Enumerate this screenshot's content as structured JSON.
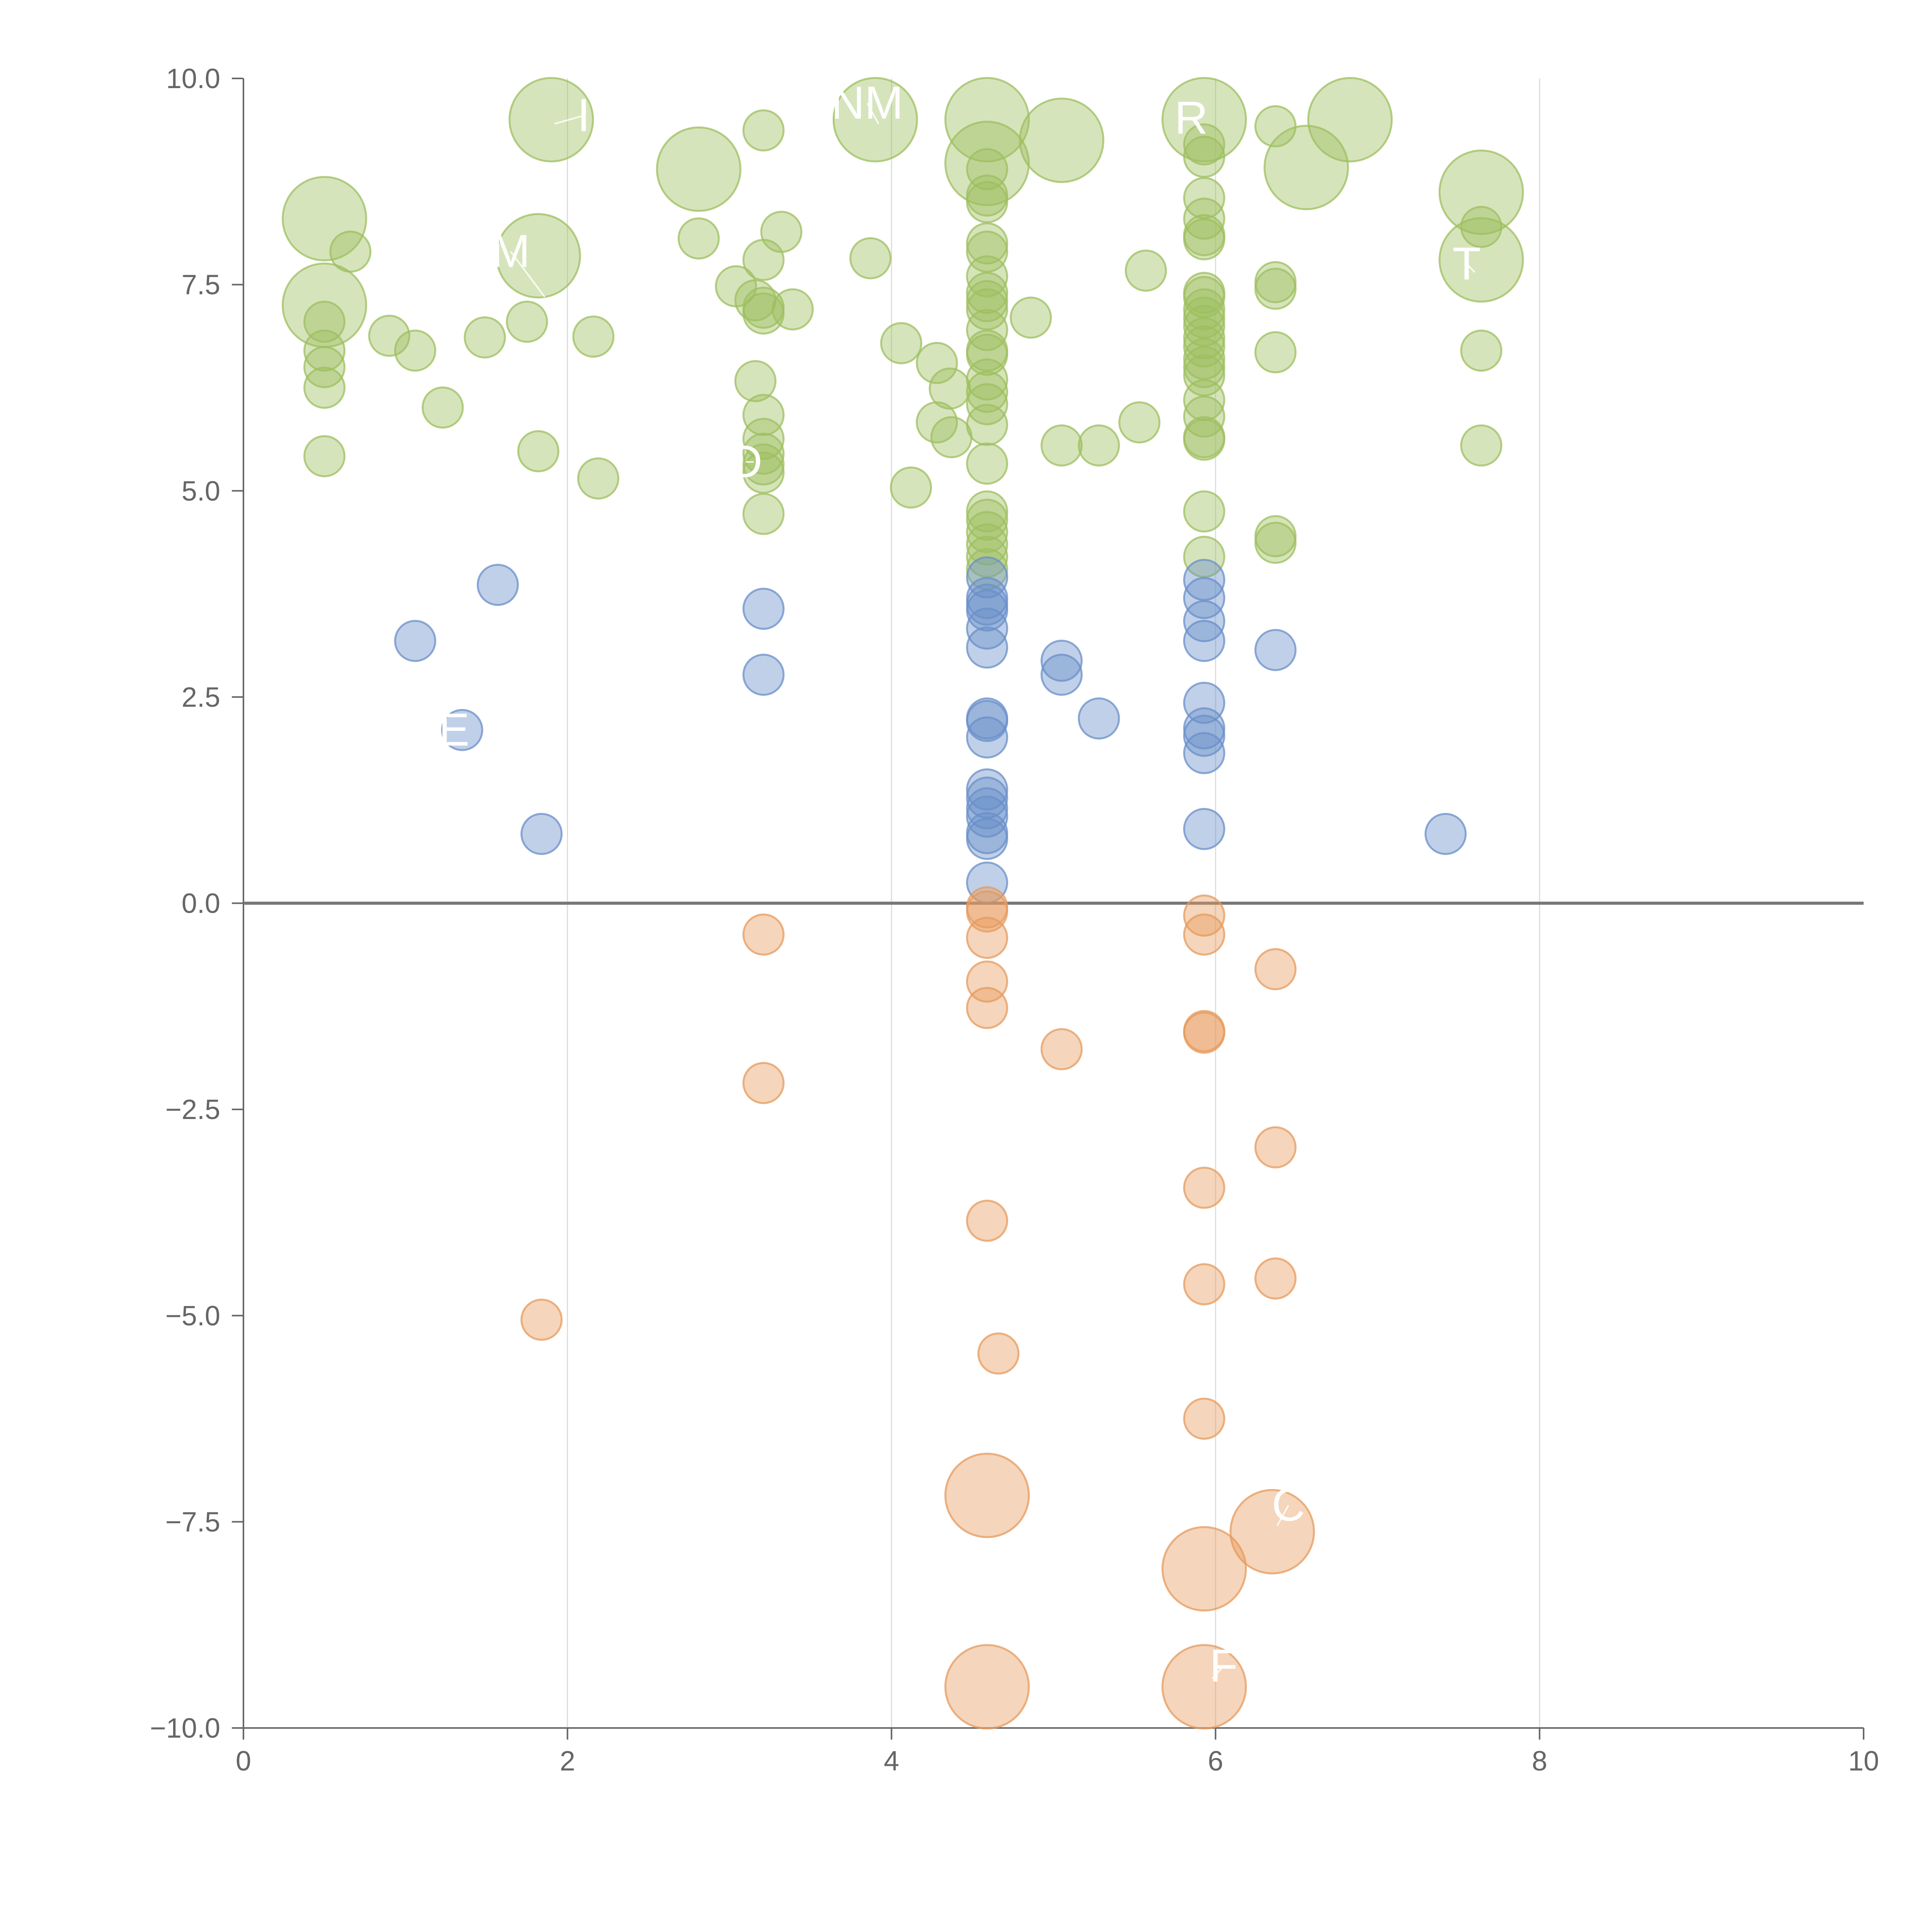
{
  "chart_data": {
    "type": "scatter",
    "title": "",
    "xlabel": "",
    "ylabel": "",
    "xlim": [
      0,
      10
    ],
    "ylim": [
      -10,
      10
    ],
    "x_ticks": [
      "0",
      "2",
      "4",
      "6",
      "8",
      "10"
    ],
    "y_ticks": [
      "−10.0",
      "−7.5",
      "−5.0",
      "−2.5",
      "0.0",
      "2.5",
      "5.0",
      "7.5",
      "10.0"
    ],
    "grid": "vertical",
    "zero_line": true,
    "colors": {
      "green": "#9ebf5f",
      "blue": "#6a8fc9",
      "orange": "#e69a5c",
      "axis": "#666666",
      "grid": "#dddddd",
      "zero_line": "#777777",
      "label": "#ffffff"
    },
    "series": [
      {
        "name": "green",
        "color": "#9ebf5f",
        "points": [
          {
            "x": 0.5,
            "y": 8.3,
            "size": "L"
          },
          {
            "x": 0.5,
            "y": 7.25,
            "size": "L"
          },
          {
            "x": 0.66,
            "y": 7.9,
            "size": "S"
          },
          {
            "x": 0.5,
            "y": 7.05,
            "size": "S"
          },
          {
            "x": 0.5,
            "y": 6.7,
            "size": "S"
          },
          {
            "x": 0.5,
            "y": 6.5,
            "size": "S"
          },
          {
            "x": 0.5,
            "y": 6.25,
            "size": "S"
          },
          {
            "x": 0.5,
            "y": 5.42,
            "size": "S"
          },
          {
            "x": 0.9,
            "y": 6.88,
            "size": "S"
          },
          {
            "x": 1.06,
            "y": 6.7,
            "size": "S"
          },
          {
            "x": 1.23,
            "y": 6.01,
            "size": "S"
          },
          {
            "x": 1.49,
            "y": 6.86,
            "size": "S"
          },
          {
            "x": 1.75,
            "y": 7.05,
            "size": "S"
          },
          {
            "x": 1.82,
            "y": 7.85,
            "size": "L"
          },
          {
            "x": 1.9,
            "y": 9.5,
            "size": "L"
          },
          {
            "x": 1.82,
            "y": 5.48,
            "size": "S"
          },
          {
            "x": 2.16,
            "y": 6.87,
            "size": "S"
          },
          {
            "x": 2.19,
            "y": 5.15,
            "size": "S"
          },
          {
            "x": 2.81,
            "y": 8.06,
            "size": "S"
          },
          {
            "x": 2.81,
            "y": 8.9,
            "size": "L"
          },
          {
            "x": 3.04,
            "y": 7.48,
            "size": "S"
          },
          {
            "x": 3.21,
            "y": 9.37,
            "size": "S"
          },
          {
            "x": 3.21,
            "y": 7.8,
            "size": "S"
          },
          {
            "x": 3.32,
            "y": 8.14,
            "size": "S"
          },
          {
            "x": 3.16,
            "y": 7.31,
            "size": "S"
          },
          {
            "x": 3.21,
            "y": 7.22,
            "size": "S"
          },
          {
            "x": 3.21,
            "y": 7.15,
            "size": "S"
          },
          {
            "x": 3.39,
            "y": 7.2,
            "size": "S"
          },
          {
            "x": 3.16,
            "y": 6.33,
            "size": "S"
          },
          {
            "x": 3.21,
            "y": 5.92,
            "size": "S"
          },
          {
            "x": 3.21,
            "y": 5.63,
            "size": "S"
          },
          {
            "x": 3.21,
            "y": 5.45,
            "size": "S"
          },
          {
            "x": 3.21,
            "y": 5.32,
            "size": "S"
          },
          {
            "x": 3.21,
            "y": 5.22,
            "size": "S"
          },
          {
            "x": 3.21,
            "y": 4.72,
            "size": "S"
          },
          {
            "x": 3.9,
            "y": 9.5,
            "size": "L"
          },
          {
            "x": 3.87,
            "y": 7.82,
            "size": "S"
          },
          {
            "x": 4.06,
            "y": 6.79,
            "size": "S"
          },
          {
            "x": 4.28,
            "y": 6.55,
            "size": "S"
          },
          {
            "x": 4.36,
            "y": 6.24,
            "size": "S"
          },
          {
            "x": 4.28,
            "y": 5.83,
            "size": "S"
          },
          {
            "x": 4.37,
            "y": 5.65,
            "size": "S"
          },
          {
            "x": 4.12,
            "y": 5.04,
            "size": "S"
          },
          {
            "x": 4.59,
            "y": 9.5,
            "size": "L"
          },
          {
            "x": 4.59,
            "y": 8.97,
            "size": "L"
          },
          {
            "x": 4.59,
            "y": 8.9,
            "size": "S"
          },
          {
            "x": 4.59,
            "y": 8.58,
            "size": "S"
          },
          {
            "x": 4.59,
            "y": 8.5,
            "size": "S"
          },
          {
            "x": 4.59,
            "y": 8.0,
            "size": "S"
          },
          {
            "x": 4.59,
            "y": 7.9,
            "size": "S"
          },
          {
            "x": 4.59,
            "y": 7.6,
            "size": "S"
          },
          {
            "x": 4.59,
            "y": 7.4,
            "size": "S"
          },
          {
            "x": 4.59,
            "y": 7.3,
            "size": "S"
          },
          {
            "x": 4.59,
            "y": 7.2,
            "size": "S"
          },
          {
            "x": 4.59,
            "y": 6.95,
            "size": "S"
          },
          {
            "x": 4.59,
            "y": 6.7,
            "size": "S"
          },
          {
            "x": 4.59,
            "y": 6.65,
            "size": "S"
          },
          {
            "x": 4.59,
            "y": 6.35,
            "size": "S"
          },
          {
            "x": 4.59,
            "y": 6.2,
            "size": "S"
          },
          {
            "x": 4.59,
            "y": 6.05,
            "size": "S"
          },
          {
            "x": 4.59,
            "y": 5.8,
            "size": "S"
          },
          {
            "x": 4.59,
            "y": 5.33,
            "size": "S"
          },
          {
            "x": 4.59,
            "y": 4.75,
            "size": "S"
          },
          {
            "x": 4.59,
            "y": 4.65,
            "size": "S"
          },
          {
            "x": 4.59,
            "y": 4.5,
            "size": "S"
          },
          {
            "x": 4.59,
            "y": 4.35,
            "size": "S"
          },
          {
            "x": 4.59,
            "y": 4.2,
            "size": "S"
          },
          {
            "x": 4.59,
            "y": 4.05,
            "size": "S"
          },
          {
            "x": 4.86,
            "y": 7.1,
            "size": "S"
          },
          {
            "x": 5.05,
            "y": 9.25,
            "size": "L"
          },
          {
            "x": 5.05,
            "y": 5.55,
            "size": "S"
          },
          {
            "x": 5.28,
            "y": 5.55,
            "size": "S"
          },
          {
            "x": 5.53,
            "y": 5.83,
            "size": "S"
          },
          {
            "x": 5.57,
            "y": 7.67,
            "size": "S"
          },
          {
            "x": 5.93,
            "y": 9.5,
            "size": "L"
          },
          {
            "x": 5.93,
            "y": 9.2,
            "size": "S"
          },
          {
            "x": 5.93,
            "y": 9.05,
            "size": "S"
          },
          {
            "x": 5.93,
            "y": 8.55,
            "size": "S"
          },
          {
            "x": 5.93,
            "y": 8.3,
            "size": "S"
          },
          {
            "x": 5.93,
            "y": 8.1,
            "size": "S"
          },
          {
            "x": 5.93,
            "y": 8.05,
            "size": "S"
          },
          {
            "x": 5.93,
            "y": 7.4,
            "size": "S"
          },
          {
            "x": 5.93,
            "y": 7.35,
            "size": "S"
          },
          {
            "x": 5.93,
            "y": 7.2,
            "size": "S"
          },
          {
            "x": 5.93,
            "y": 7.1,
            "size": "S"
          },
          {
            "x": 5.93,
            "y": 7.0,
            "size": "S"
          },
          {
            "x": 5.93,
            "y": 6.85,
            "size": "S"
          },
          {
            "x": 5.93,
            "y": 6.75,
            "size": "S"
          },
          {
            "x": 5.93,
            "y": 6.6,
            "size": "S"
          },
          {
            "x": 5.93,
            "y": 6.5,
            "size": "S"
          },
          {
            "x": 5.93,
            "y": 6.4,
            "size": "S"
          },
          {
            "x": 5.93,
            "y": 6.1,
            "size": "S"
          },
          {
            "x": 5.93,
            "y": 5.9,
            "size": "S"
          },
          {
            "x": 5.93,
            "y": 5.65,
            "size": "S"
          },
          {
            "x": 5.93,
            "y": 5.62,
            "size": "S"
          },
          {
            "x": 5.93,
            "y": 4.75,
            "size": "S"
          },
          {
            "x": 5.93,
            "y": 4.2,
            "size": "S"
          },
          {
            "x": 6.37,
            "y": 9.42,
            "size": "S"
          },
          {
            "x": 6.56,
            "y": 8.92,
            "size": "L"
          },
          {
            "x": 6.37,
            "y": 7.53,
            "size": "S"
          },
          {
            "x": 6.37,
            "y": 7.45,
            "size": "S"
          },
          {
            "x": 6.37,
            "y": 6.68,
            "size": "S"
          },
          {
            "x": 6.37,
            "y": 4.45,
            "size": "S"
          },
          {
            "x": 6.37,
            "y": 4.37,
            "size": "S"
          },
          {
            "x": 6.83,
            "y": 9.5,
            "size": "L"
          },
          {
            "x": 7.64,
            "y": 8.62,
            "size": "L"
          },
          {
            "x": 7.64,
            "y": 8.2,
            "size": "S"
          },
          {
            "x": 7.64,
            "y": 7.8,
            "size": "L"
          },
          {
            "x": 7.64,
            "y": 6.7,
            "size": "S"
          },
          {
            "x": 7.64,
            "y": 5.55,
            "size": "S"
          }
        ]
      },
      {
        "name": "blue",
        "color": "#6a8fc9",
        "points": [
          {
            "x": 1.57,
            "y": 3.86,
            "size": "S"
          },
          {
            "x": 1.06,
            "y": 3.18,
            "size": "S"
          },
          {
            "x": 1.35,
            "y": 2.1,
            "size": "S"
          },
          {
            "x": 1.84,
            "y": 0.84,
            "size": "S"
          },
          {
            "x": 3.21,
            "y": 3.57,
            "size": "S"
          },
          {
            "x": 3.21,
            "y": 2.77,
            "size": "S"
          },
          {
            "x": 4.59,
            "y": 3.95,
            "size": "S"
          },
          {
            "x": 4.59,
            "y": 3.7,
            "size": "S"
          },
          {
            "x": 4.59,
            "y": 3.62,
            "size": "S"
          },
          {
            "x": 4.59,
            "y": 3.55,
            "size": "S"
          },
          {
            "x": 4.59,
            "y": 3.33,
            "size": "S"
          },
          {
            "x": 4.59,
            "y": 3.1,
            "size": "S"
          },
          {
            "x": 4.59,
            "y": 2.24,
            "size": "S"
          },
          {
            "x": 4.59,
            "y": 2.21,
            "size": "S"
          },
          {
            "x": 4.59,
            "y": 2.01,
            "size": "S"
          },
          {
            "x": 4.59,
            "y": 1.38,
            "size": "S"
          },
          {
            "x": 4.59,
            "y": 1.28,
            "size": "S"
          },
          {
            "x": 4.59,
            "y": 1.15,
            "size": "S"
          },
          {
            "x": 4.59,
            "y": 1.05,
            "size": "S"
          },
          {
            "x": 4.59,
            "y": 0.85,
            "size": "S"
          },
          {
            "x": 4.59,
            "y": 0.78,
            "size": "S"
          },
          {
            "x": 4.59,
            "y": 0.25,
            "size": "S"
          },
          {
            "x": 5.05,
            "y": 2.94,
            "size": "S"
          },
          {
            "x": 5.05,
            "y": 2.77,
            "size": "S"
          },
          {
            "x": 5.28,
            "y": 2.24,
            "size": "S"
          },
          {
            "x": 5.93,
            "y": 3.92,
            "size": "S"
          },
          {
            "x": 5.93,
            "y": 3.7,
            "size": "S"
          },
          {
            "x": 5.93,
            "y": 3.42,
            "size": "S"
          },
          {
            "x": 5.93,
            "y": 3.18,
            "size": "S"
          },
          {
            "x": 5.93,
            "y": 2.43,
            "size": "S"
          },
          {
            "x": 5.93,
            "y": 2.12,
            "size": "S"
          },
          {
            "x": 5.93,
            "y": 2.03,
            "size": "S"
          },
          {
            "x": 5.93,
            "y": 1.82,
            "size": "S"
          },
          {
            "x": 5.93,
            "y": 0.9,
            "size": "S"
          },
          {
            "x": 6.37,
            "y": 3.07,
            "size": "S"
          },
          {
            "x": 7.42,
            "y": 0.84,
            "size": "S"
          }
        ]
      },
      {
        "name": "orange",
        "color": "#e69a5c",
        "points": [
          {
            "x": 3.21,
            "y": -0.38,
            "size": "S"
          },
          {
            "x": 3.21,
            "y": -2.18,
            "size": "S"
          },
          {
            "x": 1.84,
            "y": -5.05,
            "size": "S"
          },
          {
            "x": 4.59,
            "y": -0.05,
            "size": "S"
          },
          {
            "x": 4.59,
            "y": -0.1,
            "size": "S"
          },
          {
            "x": 4.59,
            "y": -0.42,
            "size": "S"
          },
          {
            "x": 4.59,
            "y": -0.95,
            "size": "S"
          },
          {
            "x": 4.59,
            "y": -1.27,
            "size": "S"
          },
          {
            "x": 4.59,
            "y": -3.85,
            "size": "S"
          },
          {
            "x": 4.66,
            "y": -5.46,
            "size": "S"
          },
          {
            "x": 4.59,
            "y": -7.18,
            "size": "L"
          },
          {
            "x": 4.59,
            "y": -9.5,
            "size": "L"
          },
          {
            "x": 5.05,
            "y": -1.77,
            "size": "S"
          },
          {
            "x": 5.93,
            "y": -0.15,
            "size": "S"
          },
          {
            "x": 5.93,
            "y": -0.38,
            "size": "S"
          },
          {
            "x": 5.93,
            "y": -1.55,
            "size": "S"
          },
          {
            "x": 5.93,
            "y": -1.57,
            "size": "S"
          },
          {
            "x": 5.93,
            "y": -3.45,
            "size": "S"
          },
          {
            "x": 5.93,
            "y": -4.62,
            "size": "S"
          },
          {
            "x": 5.93,
            "y": -6.25,
            "size": "S"
          },
          {
            "x": 5.93,
            "y": -8.07,
            "size": "L"
          },
          {
            "x": 5.93,
            "y": -9.5,
            "size": "L"
          },
          {
            "x": 6.37,
            "y": -0.8,
            "size": "S"
          },
          {
            "x": 6.37,
            "y": -2.96,
            "size": "S"
          },
          {
            "x": 6.37,
            "y": -4.55,
            "size": "S"
          },
          {
            "x": 6.35,
            "y": -7.62,
            "size": "L"
          }
        ]
      }
    ],
    "labels": [
      {
        "text": "M",
        "x": 1.65,
        "y": 7.9,
        "lx": 1.86,
        "ly": 7.35
      },
      {
        "text": "I",
        "x": 2.1,
        "y": 9.55,
        "lx": 1.92,
        "ly": 9.45
      },
      {
        "text": "NM",
        "x": 3.85,
        "y": 9.7,
        "lx": 3.92,
        "ly": 9.45
      },
      {
        "text": "R",
        "x": 5.85,
        "y": 9.52,
        "lx": 5.92,
        "ly": 9.35
      },
      {
        "text": "T",
        "x": 7.55,
        "y": 7.75,
        "lx": 7.6,
        "ly": 7.65
      },
      {
        "text": "D",
        "x": 3.1,
        "y": 5.35,
        "lx": 3.15,
        "ly": 5.35
      },
      {
        "text": "E",
        "x": 1.3,
        "y": 2.1,
        "lx": 1.33,
        "ly": 2.1
      },
      {
        "text": "C",
        "x": 6.45,
        "y": -7.3,
        "lx": 6.38,
        "ly": -7.55
      },
      {
        "text": "F",
        "x": 6.05,
        "y": -9.25,
        "lx": 5.98,
        "ly": -9.4
      }
    ]
  }
}
